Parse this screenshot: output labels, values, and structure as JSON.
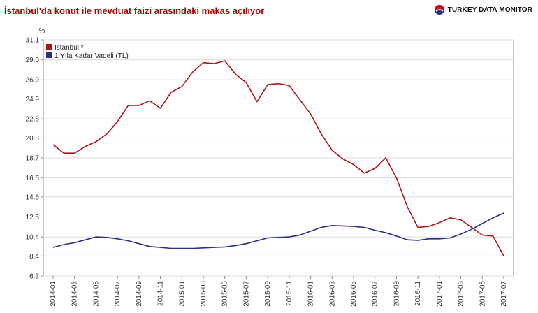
{
  "header": {
    "title": "İstanbul'da konut ile mevduat faizi arasındaki makas açılıyor",
    "brand": "TURKEY DATA MONITOR"
  },
  "colors": {
    "istanbul": "#b3121a",
    "deposit": "#2b2f86",
    "grid": "#dcdcdc",
    "axis": "#888888"
  },
  "chart_data": {
    "type": "line",
    "title": "İstanbul'da konut ile mevduat faizi arasındaki makas açılıyor",
    "ylabel": "%",
    "xlabel": "",
    "ylim": [
      6.3,
      31.1
    ],
    "yticks": [
      "31.1",
      "29.0",
      "26.9",
      "24.9",
      "22.8",
      "20.8",
      "18.7",
      "16.6",
      "14.6",
      "12.5",
      "10.4",
      "8.4",
      "6.3"
    ],
    "xticks": [
      "2014-01",
      "2014-03",
      "2014-05",
      "2014-07",
      "2014-09",
      "2014-11",
      "2015-01",
      "2015-03",
      "2015-05",
      "2015-07",
      "2015-09",
      "2015-11",
      "2016-01",
      "2016-03",
      "2016-05",
      "2016-07",
      "2016-09",
      "2016-11",
      "2017-01",
      "2017-03",
      "2017-05",
      "2017-07"
    ],
    "grid": true,
    "legend": "top-left",
    "series": [
      {
        "name": "Istanbul *",
        "color": "#b3121a",
        "values": [
          20.1,
          19.2,
          19.2,
          19.9,
          20.4,
          21.2,
          22.5,
          24.2,
          24.2,
          24.7,
          23.9,
          25.6,
          26.2,
          27.7,
          28.7,
          28.6,
          28.9,
          27.5,
          26.6,
          24.6,
          26.4,
          26.5,
          26.3,
          24.8,
          23.3,
          21.2,
          19.5,
          18.6,
          18.0,
          17.1,
          17.6,
          18.7,
          16.6,
          13.6,
          11.4,
          11.5,
          11.9,
          12.4,
          12.2,
          11.4,
          10.6,
          10.5,
          8.4
        ]
      },
      {
        "name": "1 Yıla Kadar Vadeli (TL)",
        "color": "#2b2f86",
        "values": [
          9.3,
          9.6,
          9.8,
          10.1,
          10.4,
          10.35,
          10.2,
          10.0,
          9.7,
          9.4,
          9.3,
          9.2,
          9.2,
          9.2,
          9.25,
          9.3,
          9.35,
          9.5,
          9.7,
          10.0,
          10.3,
          10.35,
          10.4,
          10.6,
          11.0,
          11.4,
          11.6,
          11.55,
          11.5,
          11.4,
          11.1,
          10.85,
          10.5,
          10.1,
          10.05,
          10.2,
          10.2,
          10.3,
          10.7,
          11.2,
          11.8,
          12.4,
          12.9
        ]
      }
    ]
  }
}
